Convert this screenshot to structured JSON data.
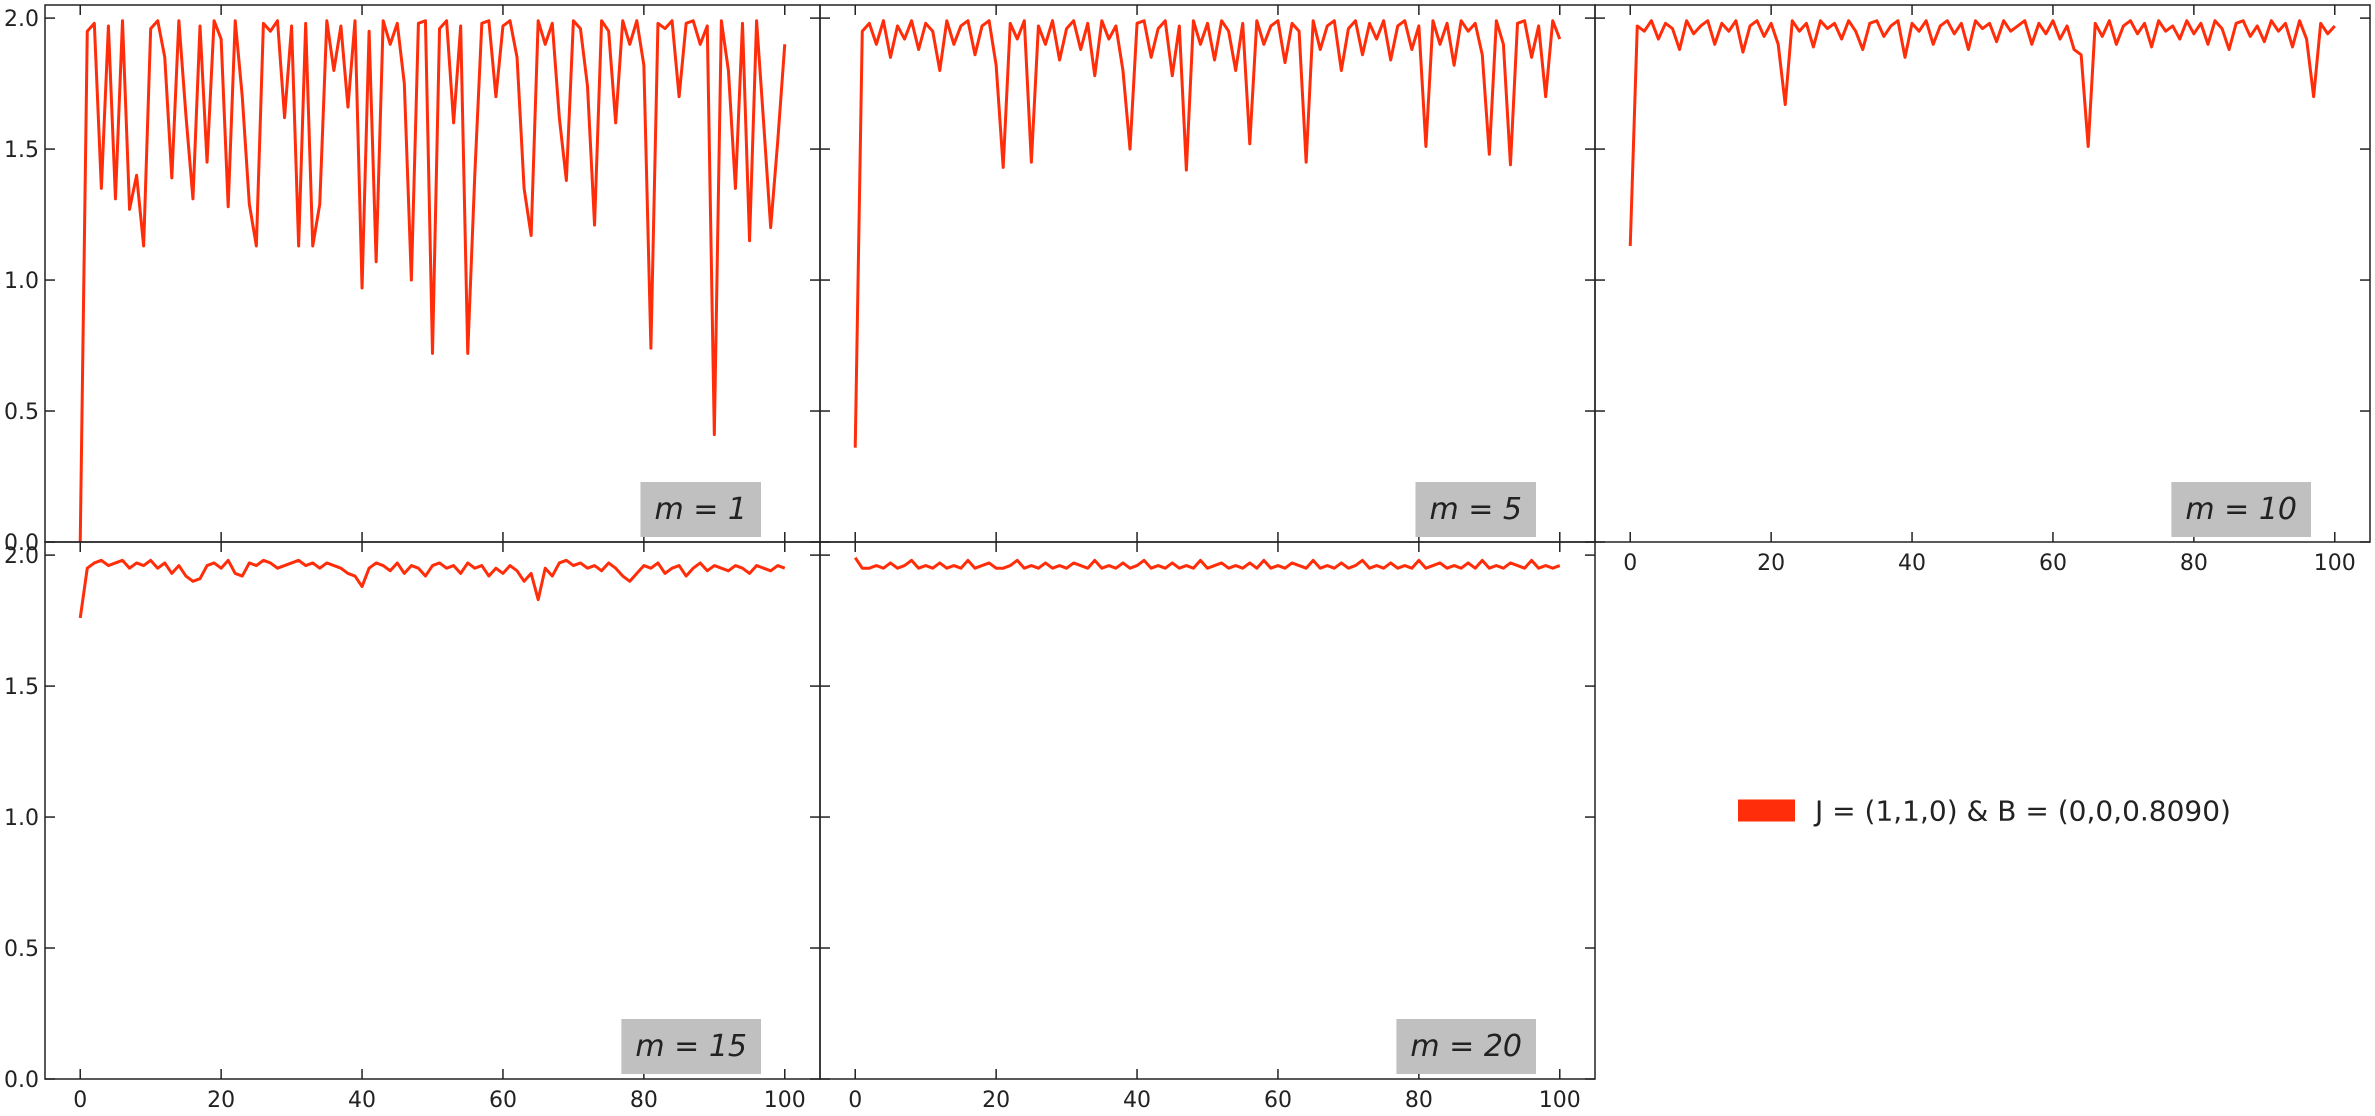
{
  "chart_data": [
    {
      "type": "line",
      "annotation": "m = 1",
      "xlim": [
        -5,
        105
      ],
      "ylim": [
        0,
        2.05
      ],
      "xticks": [
        0,
        20,
        40,
        60,
        80,
        100
      ],
      "yticks": [
        {
          "value": 0,
          "label": "0.0"
        },
        0.5,
        {
          "value": 1,
          "label": "1.0"
        },
        1.5,
        {
          "value": 2,
          "label": "2.0"
        }
      ],
      "x": [
        0,
        1,
        2,
        3,
        4,
        5,
        6,
        7,
        8,
        9,
        10,
        11,
        12,
        13,
        14,
        15,
        16,
        17,
        18,
        19,
        20,
        21,
        22,
        23,
        24,
        25,
        26,
        27,
        28,
        29,
        30,
        31,
        32,
        33,
        34,
        35,
        36,
        37,
        38,
        39,
        40,
        41,
        42,
        43,
        44,
        45,
        46,
        47,
        48,
        49,
        50,
        51,
        52,
        53,
        54,
        55,
        56,
        57,
        58,
        59,
        60,
        61,
        62,
        63,
        64,
        65,
        66,
        67,
        68,
        69,
        70,
        71,
        72,
        73,
        74,
        75,
        76,
        77,
        78,
        79,
        80,
        81,
        82,
        83,
        84,
        85,
        86,
        87,
        88,
        89,
        90,
        91,
        92,
        93,
        94,
        95,
        96,
        97,
        98,
        99,
        100
      ],
      "series": [
        {
          "name": "J = (1,1,0) & B = (0,0,0.8090)",
          "color": "#ff2d0a",
          "values": [
            0,
            1.95,
            1.98,
            1.35,
            1.97,
            1.31,
            1.99,
            1.27,
            1.4,
            1.13,
            1.96,
            1.99,
            1.85,
            1.39,
            1.99,
            1.63,
            1.31,
            1.97,
            1.45,
            1.99,
            1.92,
            1.28,
            1.99,
            1.7,
            1.29,
            1.13,
            1.98,
            1.95,
            1.99,
            1.62,
            1.97,
            1.13,
            1.98,
            1.13,
            1.29,
            1.99,
            1.8,
            1.97,
            1.66,
            1.99,
            0.97,
            1.95,
            1.07,
            1.99,
            1.9,
            1.98,
            1.75,
            1.0,
            1.98,
            1.99,
            0.72,
            1.96,
            1.99,
            1.6,
            1.97,
            0.72,
            1.4,
            1.98,
            1.99,
            1.7,
            1.97,
            1.99,
            1.85,
            1.35,
            1.17,
            1.99,
            1.9,
            1.98,
            1.62,
            1.38,
            1.99,
            1.96,
            1.74,
            1.21,
            1.99,
            1.95,
            1.6,
            1.99,
            1.9,
            1.99,
            1.82,
            0.74,
            1.98,
            1.96,
            1.99,
            1.7,
            1.98,
            1.99,
            1.9,
            1.97,
            0.41,
            1.99,
            1.8,
            1.35,
            1.98,
            1.15,
            1.99,
            1.6,
            1.2,
            1.53,
            1.9
          ]
        }
      ]
    },
    {
      "type": "line",
      "annotation": "m = 5",
      "xlim": [
        -5,
        105
      ],
      "ylim": [
        0,
        2.05
      ],
      "xticks": [
        0,
        20,
        40,
        60,
        80,
        100
      ],
      "yticks": [
        {
          "value": 0,
          "label": "0.0"
        },
        0.5,
        {
          "value": 1,
          "label": "1.0"
        },
        1.5,
        {
          "value": 2,
          "label": "2.0"
        }
      ],
      "x": [
        0,
        1,
        2,
        3,
        4,
        5,
        6,
        7,
        8,
        9,
        10,
        11,
        12,
        13,
        14,
        15,
        16,
        17,
        18,
        19,
        20,
        21,
        22,
        23,
        24,
        25,
        26,
        27,
        28,
        29,
        30,
        31,
        32,
        33,
        34,
        35,
        36,
        37,
        38,
        39,
        40,
        41,
        42,
        43,
        44,
        45,
        46,
        47,
        48,
        49,
        50,
        51,
        52,
        53,
        54,
        55,
        56,
        57,
        58,
        59,
        60,
        61,
        62,
        63,
        64,
        65,
        66,
        67,
        68,
        69,
        70,
        71,
        72,
        73,
        74,
        75,
        76,
        77,
        78,
        79,
        80,
        81,
        82,
        83,
        84,
        85,
        86,
        87,
        88,
        89,
        90,
        91,
        92,
        93,
        94,
        95,
        96,
        97,
        98,
        99,
        100
      ],
      "series": [
        {
          "color": "#ff2d0a",
          "values": [
            0.36,
            1.95,
            1.98,
            1.9,
            1.99,
            1.85,
            1.97,
            1.92,
            1.99,
            1.88,
            1.98,
            1.95,
            1.8,
            1.99,
            1.9,
            1.97,
            1.99,
            1.86,
            1.97,
            1.99,
            1.82,
            1.43,
            1.98,
            1.92,
            1.99,
            1.45,
            1.97,
            1.9,
            1.99,
            1.84,
            1.96,
            1.99,
            1.88,
            1.98,
            1.78,
            1.99,
            1.92,
            1.97,
            1.8,
            1.5,
            1.98,
            1.99,
            1.85,
            1.96,
            1.99,
            1.78,
            1.97,
            1.42,
            1.99,
            1.9,
            1.98,
            1.84,
            1.99,
            1.95,
            1.8,
            1.98,
            1.52,
            1.99,
            1.9,
            1.97,
            1.99,
            1.83,
            1.98,
            1.95,
            1.45,
            1.99,
            1.88,
            1.97,
            1.99,
            1.8,
            1.96,
            1.99,
            1.86,
            1.98,
            1.92,
            1.99,
            1.84,
            1.97,
            1.99,
            1.88,
            1.97,
            1.51,
            1.99,
            1.9,
            1.98,
            1.82,
            1.99,
            1.95,
            1.98,
            1.86,
            1.48,
            1.99,
            1.9,
            1.44,
            1.98,
            1.99,
            1.85,
            1.97,
            1.7,
            1.99,
            1.92
          ]
        }
      ]
    },
    {
      "type": "line",
      "annotation": "m = 10",
      "xlim": [
        -5,
        105
      ],
      "ylim": [
        0,
        2.05
      ],
      "xticks": [
        0,
        20,
        40,
        60,
        80,
        100
      ],
      "yticks": [
        {
          "value": 0,
          "label": "0.0"
        },
        0.5,
        {
          "value": 1,
          "label": "1.0"
        },
        1.5,
        {
          "value": 2,
          "label": "2.0"
        }
      ],
      "x": [
        0,
        1,
        2,
        3,
        4,
        5,
        6,
        7,
        8,
        9,
        10,
        11,
        12,
        13,
        14,
        15,
        16,
        17,
        18,
        19,
        20,
        21,
        22,
        23,
        24,
        25,
        26,
        27,
        28,
        29,
        30,
        31,
        32,
        33,
        34,
        35,
        36,
        37,
        38,
        39,
        40,
        41,
        42,
        43,
        44,
        45,
        46,
        47,
        48,
        49,
        50,
        51,
        52,
        53,
        54,
        55,
        56,
        57,
        58,
        59,
        60,
        61,
        62,
        63,
        64,
        65,
        66,
        67,
        68,
        69,
        70,
        71,
        72,
        73,
        74,
        75,
        76,
        77,
        78,
        79,
        80,
        81,
        82,
        83,
        84,
        85,
        86,
        87,
        88,
        89,
        90,
        91,
        92,
        93,
        94,
        95,
        96,
        97,
        98,
        99,
        100
      ],
      "series": [
        {
          "color": "#ff2d0a",
          "values": [
            1.13,
            1.97,
            1.95,
            1.99,
            1.92,
            1.98,
            1.96,
            1.88,
            1.99,
            1.94,
            1.97,
            1.99,
            1.9,
            1.98,
            1.95,
            1.99,
            1.87,
            1.97,
            1.99,
            1.93,
            1.98,
            1.9,
            1.67,
            1.99,
            1.95,
            1.98,
            1.89,
            1.99,
            1.96,
            1.98,
            1.92,
            1.99,
            1.95,
            1.88,
            1.98,
            1.99,
            1.93,
            1.97,
            1.99,
            1.85,
            1.98,
            1.95,
            1.99,
            1.9,
            1.97,
            1.99,
            1.94,
            1.98,
            1.88,
            1.99,
            1.96,
            1.98,
            1.91,
            1.99,
            1.95,
            1.97,
            1.99,
            1.9,
            1.98,
            1.94,
            1.99,
            1.92,
            1.97,
            1.88,
            1.86,
            1.51,
            1.98,
            1.93,
            1.99,
            1.9,
            1.97,
            1.99,
            1.94,
            1.98,
            1.89,
            1.99,
            1.95,
            1.97,
            1.92,
            1.99,
            1.94,
            1.98,
            1.9,
            1.99,
            1.96,
            1.88,
            1.98,
            1.99,
            1.93,
            1.97,
            1.91,
            1.99,
            1.95,
            1.98,
            1.89,
            1.99,
            1.92,
            1.7,
            1.98,
            1.94,
            1.97
          ]
        }
      ]
    },
    {
      "type": "line",
      "annotation": "m = 15",
      "xlim": [
        -5,
        105
      ],
      "ylim": [
        0,
        2.05
      ],
      "xticks": [
        0,
        20,
        40,
        60,
        80,
        100
      ],
      "yticks": [
        {
          "value": 0,
          "label": "0.0"
        },
        0.5,
        {
          "value": 1,
          "label": "1.0"
        },
        1.5,
        {
          "value": 2,
          "label": "2.0"
        }
      ],
      "x": [
        0,
        1,
        2,
        3,
        4,
        5,
        6,
        7,
        8,
        9,
        10,
        11,
        12,
        13,
        14,
        15,
        16,
        17,
        18,
        19,
        20,
        21,
        22,
        23,
        24,
        25,
        26,
        27,
        28,
        29,
        30,
        31,
        32,
        33,
        34,
        35,
        36,
        37,
        38,
        39,
        40,
        41,
        42,
        43,
        44,
        45,
        46,
        47,
        48,
        49,
        50,
        51,
        52,
        53,
        54,
        55,
        56,
        57,
        58,
        59,
        60,
        61,
        62,
        63,
        64,
        65,
        66,
        67,
        68,
        69,
        70,
        71,
        72,
        73,
        74,
        75,
        76,
        77,
        78,
        79,
        80,
        81,
        82,
        83,
        84,
        85,
        86,
        87,
        88,
        89,
        90,
        91,
        92,
        93,
        94,
        95,
        96,
        97,
        98,
        99,
        100
      ],
      "series": [
        {
          "color": "#ff2d0a",
          "values": [
            1.76,
            1.95,
            1.97,
            1.98,
            1.96,
            1.97,
            1.98,
            1.95,
            1.97,
            1.96,
            1.98,
            1.95,
            1.97,
            1.93,
            1.96,
            1.92,
            1.9,
            1.91,
            1.96,
            1.97,
            1.95,
            1.98,
            1.93,
            1.92,
            1.97,
            1.96,
            1.98,
            1.97,
            1.95,
            1.96,
            1.97,
            1.98,
            1.96,
            1.97,
            1.95,
            1.97,
            1.96,
            1.95,
            1.93,
            1.92,
            1.88,
            1.95,
            1.97,
            1.96,
            1.94,
            1.97,
            1.93,
            1.96,
            1.95,
            1.92,
            1.96,
            1.97,
            1.95,
            1.96,
            1.93,
            1.97,
            1.95,
            1.96,
            1.92,
            1.95,
            1.93,
            1.96,
            1.94,
            1.9,
            1.93,
            1.83,
            1.95,
            1.92,
            1.97,
            1.98,
            1.96,
            1.97,
            1.95,
            1.96,
            1.94,
            1.97,
            1.95,
            1.92,
            1.9,
            1.93,
            1.96,
            1.95,
            1.97,
            1.93,
            1.95,
            1.96,
            1.92,
            1.95,
            1.97,
            1.94,
            1.96,
            1.95,
            1.94,
            1.96,
            1.95,
            1.93,
            1.96,
            1.95,
            1.94,
            1.96,
            1.95
          ]
        }
      ]
    },
    {
      "type": "line",
      "annotation": "m = 20",
      "xlim": [
        -5,
        105
      ],
      "ylim": [
        0,
        2.05
      ],
      "xticks": [
        0,
        20,
        40,
        60,
        80,
        100
      ],
      "yticks": [
        {
          "value": 0,
          "label": "0.0"
        },
        0.5,
        {
          "value": 1,
          "label": "1.0"
        },
        1.5,
        {
          "value": 2,
          "label": "2.0"
        }
      ],
      "x": [
        0,
        1,
        2,
        3,
        4,
        5,
        6,
        7,
        8,
        9,
        10,
        11,
        12,
        13,
        14,
        15,
        16,
        17,
        18,
        19,
        20,
        21,
        22,
        23,
        24,
        25,
        26,
        27,
        28,
        29,
        30,
        31,
        32,
        33,
        34,
        35,
        36,
        37,
        38,
        39,
        40,
        41,
        42,
        43,
        44,
        45,
        46,
        47,
        48,
        49,
        50,
        51,
        52,
        53,
        54,
        55,
        56,
        57,
        58,
        59,
        60,
        61,
        62,
        63,
        64,
        65,
        66,
        67,
        68,
        69,
        70,
        71,
        72,
        73,
        74,
        75,
        76,
        77,
        78,
        79,
        80,
        81,
        82,
        83,
        84,
        85,
        86,
        87,
        88,
        89,
        90,
        91,
        92,
        93,
        94,
        95,
        96,
        97,
        98,
        99,
        100
      ],
      "series": [
        {
          "color": "#ff2d0a",
          "values": [
            1.99,
            1.95,
            1.95,
            1.96,
            1.95,
            1.97,
            1.95,
            1.96,
            1.98,
            1.95,
            1.96,
            1.95,
            1.97,
            1.95,
            1.96,
            1.95,
            1.98,
            1.95,
            1.96,
            1.97,
            1.95,
            1.95,
            1.96,
            1.98,
            1.95,
            1.96,
            1.95,
            1.97,
            1.95,
            1.96,
            1.95,
            1.97,
            1.96,
            1.95,
            1.98,
            1.95,
            1.96,
            1.95,
            1.97,
            1.95,
            1.96,
            1.98,
            1.95,
            1.96,
            1.95,
            1.97,
            1.95,
            1.96,
            1.95,
            1.98,
            1.95,
            1.96,
            1.97,
            1.95,
            1.96,
            1.95,
            1.97,
            1.95,
            1.98,
            1.95,
            1.96,
            1.95,
            1.97,
            1.96,
            1.95,
            1.98,
            1.95,
            1.96,
            1.95,
            1.97,
            1.95,
            1.96,
            1.98,
            1.95,
            1.96,
            1.95,
            1.97,
            1.95,
            1.96,
            1.95,
            1.98,
            1.95,
            1.96,
            1.97,
            1.95,
            1.96,
            1.95,
            1.97,
            1.95,
            1.98,
            1.95,
            1.96,
            1.95,
            1.97,
            1.96,
            1.95,
            1.98,
            1.95,
            1.96,
            1.95,
            1.96
          ]
        }
      ]
    }
  ]
}
